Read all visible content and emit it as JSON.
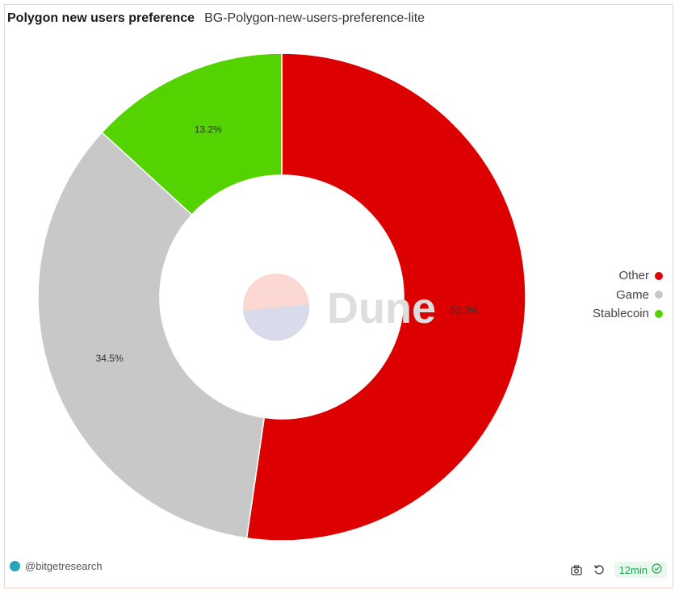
{
  "header": {
    "title": "Polygon new users preference",
    "subtitle": "BG-Polygon-new-users-preference-lite"
  },
  "watermark": {
    "text": "Dune"
  },
  "chart_data": {
    "type": "pie",
    "donut": true,
    "slices": [
      {
        "name": "Other",
        "value": 52.3,
        "label": "52.3%",
        "color": "#dd0000"
      },
      {
        "name": "Game",
        "value": 34.5,
        "label": "34.5%",
        "color": "#c8c8c8"
      },
      {
        "name": "Stablecoin",
        "value": 13.2,
        "label": "13.2%",
        "color": "#55d300"
      }
    ],
    "legend_position": "right"
  },
  "footer": {
    "author": "@bitgetresearch",
    "refresh_label": "12min",
    "icons": [
      "camera-icon",
      "refresh-icon",
      "check-circle-icon"
    ]
  }
}
